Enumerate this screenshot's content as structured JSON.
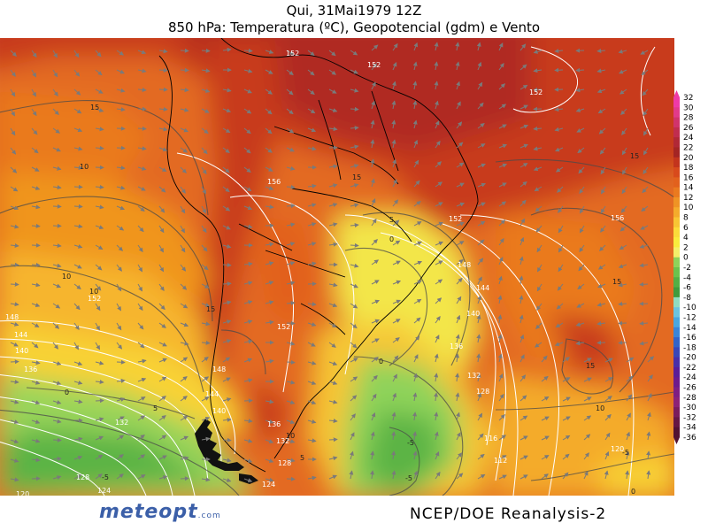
{
  "title": {
    "line1": "Qui, 31Mai1979 12Z",
    "line2": "850 hPa: Temperatura (ºC), Geopotencial (gdm) e Vento"
  },
  "colorbar": {
    "labels": [
      "32",
      "30",
      "28",
      "26",
      "24",
      "22",
      "20",
      "18",
      "16",
      "14",
      "12",
      "10",
      "8",
      "6",
      "4",
      "2",
      "0",
      "-2",
      "-4",
      "-6",
      "-8",
      "-10",
      "-12",
      "-14",
      "-16",
      "-18",
      "-20",
      "-22",
      "-24",
      "-26",
      "-28",
      "-30",
      "-32",
      "-34",
      "-36"
    ],
    "colors": [
      "#ef3aa6",
      "#e23a8a",
      "#d1336c",
      "#c12d4f",
      "#b12836",
      "#a42524",
      "#c3341d",
      "#d84a1c",
      "#e2611d",
      "#ea7a1f",
      "#ef9325",
      "#f4ab2c",
      "#f8c534",
      "#fbdc3a",
      "#f9ec3c",
      "#f4f06a",
      "#8fd35a",
      "#6cc24d",
      "#53af45",
      "#3f9b3e",
      "#8fdcc2",
      "#6cc4e0",
      "#4aa7e0",
      "#3a85d8",
      "#3364c8",
      "#3a47b8",
      "#4a2fa8",
      "#5b1d98",
      "#6e1a8c",
      "#7f1e82",
      "#8d2277",
      "#7a1c5d",
      "#661745",
      "#521233"
    ]
  },
  "geopotential_labels": [
    {
      "text": "152"
    },
    {
      "text": "152"
    },
    {
      "text": "152"
    },
    {
      "text": "156"
    },
    {
      "text": "152"
    },
    {
      "text": "148"
    },
    {
      "text": "144"
    },
    {
      "text": "140"
    },
    {
      "text": "136"
    },
    {
      "text": "132"
    },
    {
      "text": "128"
    },
    {
      "text": "124"
    },
    {
      "text": "120"
    },
    {
      "text": "156"
    },
    {
      "text": "152"
    },
    {
      "text": "148"
    },
    {
      "text": "144"
    },
    {
      "text": "140"
    },
    {
      "text": "136"
    },
    {
      "text": "132"
    },
    {
      "text": "128"
    },
    {
      "text": "116"
    },
    {
      "text": "112"
    },
    {
      "text": "120"
    },
    {
      "text": "152"
    },
    {
      "text": "148"
    },
    {
      "text": "144"
    },
    {
      "text": "140"
    },
    {
      "text": "136"
    },
    {
      "text": "132"
    },
    {
      "text": "128"
    },
    {
      "text": "124"
    },
    {
      "text": "152"
    }
  ],
  "temperature_labels": [
    {
      "text": "15"
    },
    {
      "text": "10"
    },
    {
      "text": "10"
    },
    {
      "text": "10"
    },
    {
      "text": "15"
    },
    {
      "text": "15"
    },
    {
      "text": "5"
    },
    {
      "text": "0"
    },
    {
      "text": "0"
    },
    {
      "text": "5"
    },
    {
      "text": "-5"
    },
    {
      "text": "-5"
    },
    {
      "text": "10"
    },
    {
      "text": "5"
    },
    {
      "text": "0"
    },
    {
      "text": "-5"
    },
    {
      "text": "-5"
    },
    {
      "text": "10"
    },
    {
      "text": "15"
    },
    {
      "text": "15"
    },
    {
      "text": "15"
    },
    {
      "text": "15"
    },
    {
      "text": "10"
    },
    {
      "text": "0"
    },
    {
      "text": "0"
    }
  ],
  "footer": {
    "logo": "meteopt",
    "logo_suffix": ".com",
    "credit": "NCEP/DOE  Reanalysis-2"
  }
}
